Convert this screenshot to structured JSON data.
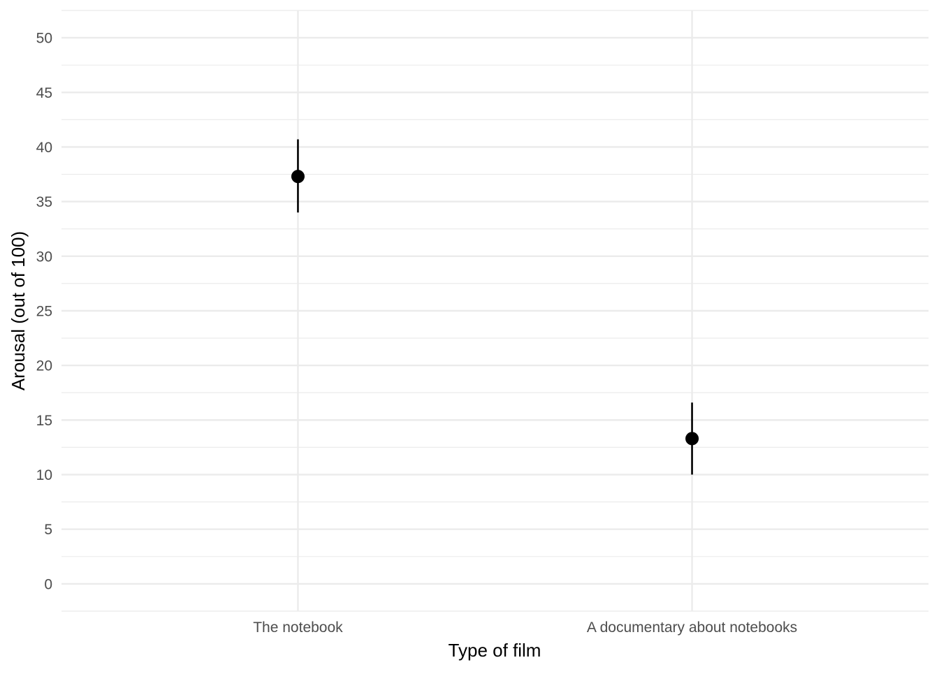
{
  "chart_data": {
    "type": "scatter",
    "title": "",
    "xlabel": "Type of film",
    "ylabel": "Arousal (out of 100)",
    "categories": [
      "The notebook",
      "A documentary about notebooks"
    ],
    "series": [
      {
        "values": [
          37.3,
          13.3
        ],
        "error_low": [
          34.0,
          10.0
        ],
        "error_high": [
          40.7,
          16.6
        ]
      }
    ],
    "ylim": [
      -2.5,
      52.5
    ],
    "yticks": [
      0,
      5,
      10,
      15,
      20,
      25,
      30,
      35,
      40,
      45,
      50
    ],
    "ytick_labels": [
      "0",
      "5",
      "10",
      "15",
      "20",
      "25",
      "30",
      "35",
      "40",
      "45",
      "50"
    ],
    "grid": true,
    "legend": "none",
    "colors": {
      "point": "#000000",
      "errorbar": "#000000",
      "grid": "#ebebeb",
      "tick_text": "#4d4d4d",
      "axis_title": "#000000"
    }
  }
}
